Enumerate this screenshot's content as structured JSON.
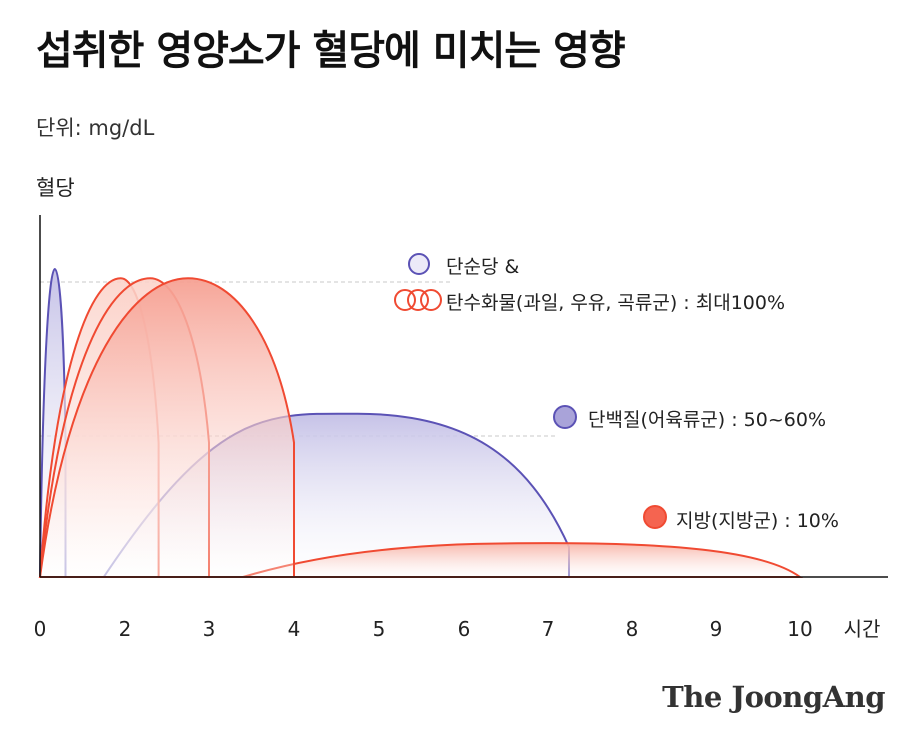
{
  "header": {
    "title": "섭취한 영양소가 혈당에 미치는 영향",
    "unit": "단위: mg/dL"
  },
  "brand": "The JoongAng",
  "chart_data": {
    "type": "area",
    "ylabel": "혈당",
    "xlabel": "시간",
    "xlim": [
      0,
      10
    ],
    "x_ticks": [
      "0",
      "2",
      "3",
      "4",
      "5",
      "6",
      "7",
      "8",
      "9",
      "10"
    ],
    "x_tick_values": [
      0,
      2,
      3,
      4,
      5,
      6,
      7,
      8,
      9,
      10
    ],
    "grid": false,
    "legend_placement": "right",
    "reference_lines": [
      100,
      50
    ],
    "series": [
      {
        "name": "단순당 &",
        "color": "#5b52b5",
        "start": 0,
        "peak_x": 0.35,
        "peak_y": 100,
        "end": 0.6
      },
      {
        "name": "탄수화물(과일, 우유, 곡류군) : 최대100%",
        "color": "#f04a32",
        "start": 0,
        "peak_x": 1.9,
        "peak_y": 97,
        "end": 2.4
      },
      {
        "name": "탄수화물(과일, 우유, 곡류군) : 최대100%",
        "color": "#f04a32",
        "start": 0,
        "peak_x": 2.3,
        "peak_y": 97,
        "end": 3.0
      },
      {
        "name": "탄수화물(과일, 우유, 곡류군) : 최대100%",
        "color": "#f04a32",
        "start": 0,
        "peak_x": 2.75,
        "peak_y": 97,
        "end": 4.0
      },
      {
        "name": "단백질(어육류군) : 50~60%",
        "color": "#5b52b5",
        "start": 1.5,
        "peak_x": 4.75,
        "peak_y": 53,
        "end": 7.25
      },
      {
        "name": "지방(지방군) : 10%",
        "color": "#f04a32",
        "start": 3.4,
        "peak_x": 7.0,
        "peak_y": 11,
        "end": 10.0
      }
    ],
    "legend": [
      {
        "label": "단순당 &",
        "marker": "circle-outline-purple"
      },
      {
        "label": "탄수화물(과일, 우유, 곡류군) : 최대100%",
        "marker": "triple-circle-outline-red"
      },
      {
        "label": "단백질(어육류군) : 50~60%",
        "marker": "circle-filled-purple"
      },
      {
        "label": "지방(지방군) : 10%",
        "marker": "circle-filled-red"
      }
    ]
  }
}
